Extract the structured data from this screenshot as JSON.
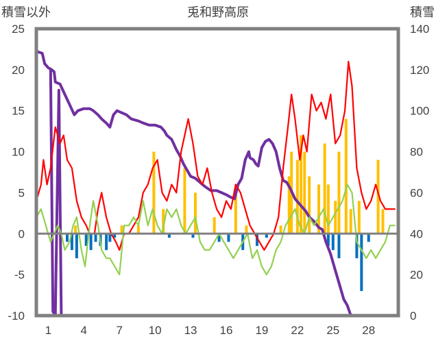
{
  "chart_data": {
    "type": "line",
    "title": "兎和野高原",
    "ylabel_left": "積雪以外",
    "ylabel_right": "積雪",
    "x_ticks": [
      "1",
      "4",
      "7",
      "10",
      "13",
      "16",
      "19",
      "22",
      "25",
      "28"
    ],
    "x_range": [
      0,
      30.5
    ],
    "y_left": {
      "range": [
        -10,
        25
      ],
      "ticks": [
        "25",
        "20",
        "15",
        "10",
        "5",
        "0",
        "-5",
        "-10"
      ]
    },
    "y_right": {
      "range": [
        0,
        140
      ],
      "ticks": [
        "140",
        "120",
        "100",
        "80",
        "60",
        "40",
        "20",
        "0"
      ]
    },
    "colors": {
      "snow": "#7030a0",
      "red_line": "#ff0000",
      "green_line": "#92d050",
      "bar_pos": "#ffc000",
      "bar_neg": "#0070c0",
      "frame": "#808080"
    },
    "series": [
      {
        "color": "#7030a0",
        "axis": "right",
        "points": [
          [
            0.0,
            129
          ],
          [
            0.5,
            128
          ],
          [
            0.7,
            123
          ],
          [
            1.0,
            121
          ],
          [
            1.3,
            120
          ],
          [
            1.5,
            119
          ],
          [
            1.6,
            114
          ],
          [
            2.0,
            113
          ],
          [
            2.4,
            108
          ],
          [
            2.8,
            103
          ],
          [
            3.2,
            98
          ],
          [
            3.5,
            100
          ],
          [
            4.0,
            101
          ],
          [
            4.5,
            101
          ],
          [
            4.8,
            100
          ],
          [
            5.2,
            98
          ],
          [
            5.5,
            96
          ],
          [
            5.9,
            94
          ],
          [
            6.2,
            92
          ],
          [
            6.5,
            98
          ],
          [
            6.8,
            100
          ],
          [
            7.2,
            99
          ],
          [
            7.6,
            98
          ],
          [
            8.0,
            96
          ],
          [
            8.6,
            95
          ],
          [
            9.0,
            94
          ],
          [
            9.5,
            93
          ],
          [
            10.0,
            93
          ],
          [
            10.5,
            92
          ],
          [
            10.8,
            90
          ],
          [
            11.0,
            88
          ],
          [
            11.4,
            86
          ],
          [
            11.8,
            81
          ],
          [
            12.1,
            78
          ],
          [
            12.4,
            74
          ],
          [
            12.7,
            71
          ],
          [
            13.0,
            68
          ],
          [
            13.4,
            67
          ],
          [
            13.8,
            65
          ],
          [
            14.2,
            63
          ],
          [
            14.7,
            61
          ],
          [
            15.2,
            61
          ],
          [
            15.6,
            60
          ],
          [
            16.0,
            59
          ],
          [
            16.3,
            58
          ],
          [
            16.7,
            57
          ],
          [
            17.0,
            64
          ],
          [
            17.3,
            67
          ],
          [
            17.6,
            76
          ],
          [
            17.9,
            80
          ],
          [
            18.0,
            77
          ],
          [
            18.3,
            76
          ],
          [
            18.5,
            74
          ],
          [
            18.7,
            73
          ],
          [
            19.0,
            82
          ],
          [
            19.3,
            85
          ],
          [
            19.6,
            86
          ],
          [
            19.9,
            84
          ],
          [
            20.2,
            80
          ],
          [
            20.5,
            72
          ],
          [
            20.8,
            66
          ],
          [
            21.1,
            65
          ],
          [
            21.4,
            62
          ],
          [
            21.8,
            57
          ],
          [
            22.1,
            55
          ],
          [
            22.4,
            53
          ],
          [
            22.7,
            51
          ],
          [
            23.0,
            48
          ],
          [
            23.4,
            46
          ],
          [
            23.8,
            43
          ],
          [
            24.1,
            42
          ],
          [
            24.4,
            36
          ],
          [
            24.8,
            30
          ],
          [
            25.2,
            22
          ],
          [
            25.6,
            14
          ],
          [
            25.9,
            8
          ],
          [
            26.2,
            5
          ],
          [
            26.5,
            0
          ],
          [
            30.2,
            0
          ]
        ]
      },
      {
        "color": "#7030a0",
        "axis": "right",
        "points": [
          [
            1.2,
            120
          ],
          [
            1.4,
            2
          ],
          [
            1.6,
            0
          ],
          [
            1.9,
            110
          ],
          [
            2.1,
            0
          ],
          [
            2.3,
            0
          ]
        ]
      },
      {
        "color": "#ff0000",
        "axis": "left",
        "points": [
          [
            0.0,
            4
          ],
          [
            0.4,
            6
          ],
          [
            0.6,
            9
          ],
          [
            0.9,
            6
          ],
          [
            1.2,
            8
          ],
          [
            1.6,
            13
          ],
          [
            2.0,
            11
          ],
          [
            2.3,
            12
          ],
          [
            2.6,
            9
          ],
          [
            3.0,
            8
          ],
          [
            3.4,
            4
          ],
          [
            3.8,
            2
          ],
          [
            4.2,
            1
          ],
          [
            4.5,
            0
          ],
          [
            4.9,
            0
          ],
          [
            5.2,
            3
          ],
          [
            5.5,
            5
          ],
          [
            5.9,
            2
          ],
          [
            6.3,
            0
          ],
          [
            6.7,
            -1
          ],
          [
            7.0,
            -2
          ],
          [
            7.4,
            0
          ],
          [
            7.8,
            0
          ],
          [
            8.2,
            1
          ],
          [
            8.6,
            2
          ],
          [
            9.0,
            5
          ],
          [
            9.4,
            6
          ],
          [
            9.8,
            8
          ],
          [
            10.2,
            9
          ],
          [
            10.6,
            5
          ],
          [
            11.0,
            4
          ],
          [
            11.4,
            6
          ],
          [
            11.8,
            5
          ],
          [
            12.2,
            10
          ],
          [
            12.5,
            12
          ],
          [
            12.8,
            14
          ],
          [
            13.2,
            11
          ],
          [
            13.6,
            7
          ],
          [
            14.0,
            6
          ],
          [
            14.4,
            8
          ],
          [
            14.8,
            5
          ],
          [
            15.2,
            3
          ],
          [
            15.6,
            2
          ],
          [
            16.0,
            4
          ],
          [
            16.4,
            3
          ],
          [
            16.8,
            6
          ],
          [
            17.2,
            5
          ],
          [
            17.6,
            3
          ],
          [
            18.0,
            1
          ],
          [
            18.4,
            0
          ],
          [
            18.8,
            -1
          ],
          [
            19.2,
            -2
          ],
          [
            19.6,
            -1
          ],
          [
            20.0,
            0
          ],
          [
            20.4,
            2
          ],
          [
            20.8,
            8
          ],
          [
            21.2,
            13
          ],
          [
            21.5,
            17
          ],
          [
            21.8,
            14
          ],
          [
            22.2,
            9
          ],
          [
            22.5,
            12
          ],
          [
            22.8,
            10
          ],
          [
            23.2,
            17
          ],
          [
            23.6,
            15
          ],
          [
            24.0,
            16
          ],
          [
            24.4,
            14
          ],
          [
            24.8,
            17
          ],
          [
            25.2,
            11
          ],
          [
            25.6,
            12
          ],
          [
            26.0,
            15
          ],
          [
            26.3,
            21
          ],
          [
            26.6,
            18
          ],
          [
            27.0,
            8
          ],
          [
            27.4,
            5
          ],
          [
            27.8,
            3
          ],
          [
            28.2,
            4
          ],
          [
            28.6,
            6
          ],
          [
            29.0,
            4
          ],
          [
            29.4,
            3
          ],
          [
            29.8,
            3
          ],
          [
            30.2,
            3
          ]
        ]
      },
      {
        "color": "#92d050",
        "axis": "left",
        "points": [
          [
            0.0,
            2
          ],
          [
            0.4,
            3
          ],
          [
            0.8,
            1
          ],
          [
            1.0,
            0
          ],
          [
            1.2,
            -1
          ],
          [
            1.5,
            0
          ],
          [
            1.8,
            1
          ],
          [
            2.1,
            0
          ],
          [
            2.4,
            -2
          ],
          [
            2.8,
            -1
          ],
          [
            3.1,
            1
          ],
          [
            3.4,
            2
          ],
          [
            3.8,
            -2
          ],
          [
            4.1,
            -4
          ],
          [
            4.5,
            1
          ],
          [
            4.8,
            4
          ],
          [
            5.2,
            1
          ],
          [
            5.5,
            -2
          ],
          [
            5.9,
            -3
          ],
          [
            6.2,
            -3
          ],
          [
            6.6,
            -4
          ],
          [
            7.0,
            -5
          ],
          [
            7.4,
            1
          ],
          [
            7.8,
            1
          ],
          [
            8.2,
            2
          ],
          [
            8.6,
            1
          ],
          [
            9.0,
            4
          ],
          [
            9.4,
            1
          ],
          [
            9.8,
            3
          ],
          [
            10.2,
            1
          ],
          [
            10.6,
            0
          ],
          [
            11.0,
            3
          ],
          [
            11.4,
            2
          ],
          [
            11.8,
            3
          ],
          [
            12.2,
            1
          ],
          [
            12.6,
            0
          ],
          [
            13.0,
            1
          ],
          [
            13.4,
            2
          ],
          [
            13.8,
            -1
          ],
          [
            14.2,
            -2
          ],
          [
            14.6,
            -2
          ],
          [
            15.0,
            -1
          ],
          [
            15.4,
            0
          ],
          [
            15.8,
            -1
          ],
          [
            16.2,
            -2
          ],
          [
            16.6,
            -3
          ],
          [
            17.0,
            -2
          ],
          [
            17.4,
            -1
          ],
          [
            17.8,
            0
          ],
          [
            18.2,
            -3
          ],
          [
            18.6,
            -2
          ],
          [
            19.0,
            -4
          ],
          [
            19.4,
            -5
          ],
          [
            19.8,
            -4
          ],
          [
            20.2,
            -2
          ],
          [
            20.6,
            -1
          ],
          [
            21.0,
            1
          ],
          [
            21.4,
            2
          ],
          [
            21.8,
            3
          ],
          [
            22.2,
            1
          ],
          [
            22.6,
            0
          ],
          [
            23.0,
            2
          ],
          [
            23.4,
            1
          ],
          [
            23.8,
            2
          ],
          [
            24.2,
            3
          ],
          [
            24.6,
            1
          ],
          [
            25.0,
            2
          ],
          [
            25.4,
            3
          ],
          [
            25.8,
            4
          ],
          [
            26.2,
            6
          ],
          [
            26.6,
            5
          ],
          [
            27.0,
            -1
          ],
          [
            27.4,
            -2
          ],
          [
            27.8,
            -3
          ],
          [
            28.2,
            -2
          ],
          [
            28.6,
            -3
          ],
          [
            29.0,
            -2
          ],
          [
            29.4,
            -1
          ],
          [
            29.8,
            1
          ],
          [
            30.2,
            1
          ]
        ]
      },
      {
        "color": "#ffc000",
        "axis": "left",
        "bars": [
          [
            3.3,
            1
          ],
          [
            7.2,
            1
          ],
          [
            8.6,
            1
          ],
          [
            9.9,
            10
          ],
          [
            10.7,
            3
          ],
          [
            12.5,
            8
          ],
          [
            13.4,
            5
          ],
          [
            15.0,
            2
          ],
          [
            16.8,
            5
          ],
          [
            17.7,
            1
          ],
          [
            20.6,
            1
          ],
          [
            21.3,
            7
          ],
          [
            21.5,
            10
          ],
          [
            22.0,
            9
          ],
          [
            22.3,
            12
          ],
          [
            22.6,
            10
          ],
          [
            23.0,
            7
          ],
          [
            23.8,
            6
          ],
          [
            24.3,
            11
          ],
          [
            24.6,
            6
          ],
          [
            25.2,
            4
          ],
          [
            25.5,
            10
          ],
          [
            26.1,
            14
          ],
          [
            26.5,
            3
          ],
          [
            27.2,
            4
          ],
          [
            28.8,
            9
          ],
          [
            29.2,
            3
          ]
        ]
      },
      {
        "color": "#0070c0",
        "axis": "left",
        "bars": [
          [
            2.6,
            -1
          ],
          [
            3.0,
            -2
          ],
          [
            3.4,
            -3
          ],
          [
            4.2,
            -1.5
          ],
          [
            4.6,
            -2
          ],
          [
            5.0,
            -1
          ],
          [
            5.4,
            -1.5
          ],
          [
            5.9,
            -2
          ],
          [
            6.2,
            -1
          ],
          [
            6.6,
            -0.5
          ],
          [
            11.2,
            -0.5
          ],
          [
            13.2,
            -0.5
          ],
          [
            15.4,
            -1
          ],
          [
            16.2,
            -1
          ],
          [
            17.4,
            -2
          ],
          [
            18.6,
            -1.5
          ],
          [
            19.4,
            -0.5
          ],
          [
            24.6,
            -1.5
          ],
          [
            25.0,
            -2
          ],
          [
            25.5,
            -3
          ],
          [
            27.0,
            -3
          ],
          [
            27.4,
            -7
          ],
          [
            28.0,
            -1
          ]
        ]
      }
    ]
  }
}
